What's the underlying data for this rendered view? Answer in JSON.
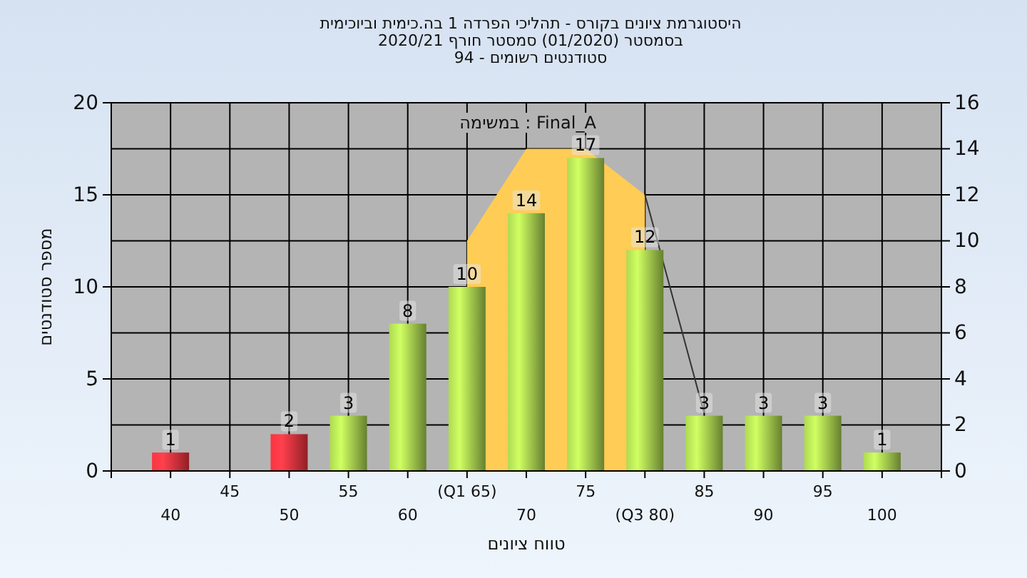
{
  "chart_data": {
    "type": "bar",
    "title": "היסטוגרמת ציונים בקורס - תהליכי הפרדה 1 בה.כימית וביוכימית",
    "subtitle": "בסמסטר (01/2020) סמסטר חורף 2020/21\nסטודנטים רשומים - 94",
    "xlabel": "טווח ציונים",
    "ylabel": "מספר סטודנטים",
    "annotations": [
      "במשימה : Final_A"
    ],
    "categories": [
      "40",
      "45",
      "50",
      "55",
      "60",
      "(Q1 65)",
      "70",
      "75",
      "(Q3 80)",
      "85",
      "90",
      "95",
      "100"
    ],
    "series": [
      {
        "type": "area",
        "axis": "y2",
        "color": "#ffcc55",
        "values": [
          null,
          null,
          null,
          null,
          null,
          10,
          14,
          14,
          12,
          null,
          null,
          null,
          null
        ]
      },
      {
        "type": "line",
        "axis": "y2",
        "color": "#333333",
        "values": [
          null,
          null,
          null,
          null,
          null,
          null,
          null,
          null,
          12,
          2.5,
          null,
          null,
          null
        ]
      },
      {
        "values": [
          1,
          0,
          2,
          3,
          8,
          10,
          14,
          17,
          12,
          3,
          3,
          3,
          1
        ],
        "colors": [
          "#e0303a",
          "#e0303a",
          "#e0303a",
          "#9cc44a",
          "#9cc44a",
          "#9cc44a",
          "#9cc44a",
          "#9cc44a",
          "#9cc44a",
          "#9cc44a",
          "#9cc44a",
          "#9cc44a",
          "#9cc44a"
        ],
        "value_labels": [
          "1",
          null,
          "2",
          "3",
          "8",
          "10",
          "14",
          "17",
          "12",
          "3",
          "3",
          "3",
          "1"
        ]
      }
    ],
    "ylim": [
      0,
      20
    ],
    "yticks": [
      0,
      5,
      10,
      15,
      20
    ],
    "y2lim": [
      0,
      16
    ],
    "y2ticks": [
      0,
      2,
      4,
      6,
      8,
      10,
      12,
      14,
      16
    ],
    "grid": true
  }
}
